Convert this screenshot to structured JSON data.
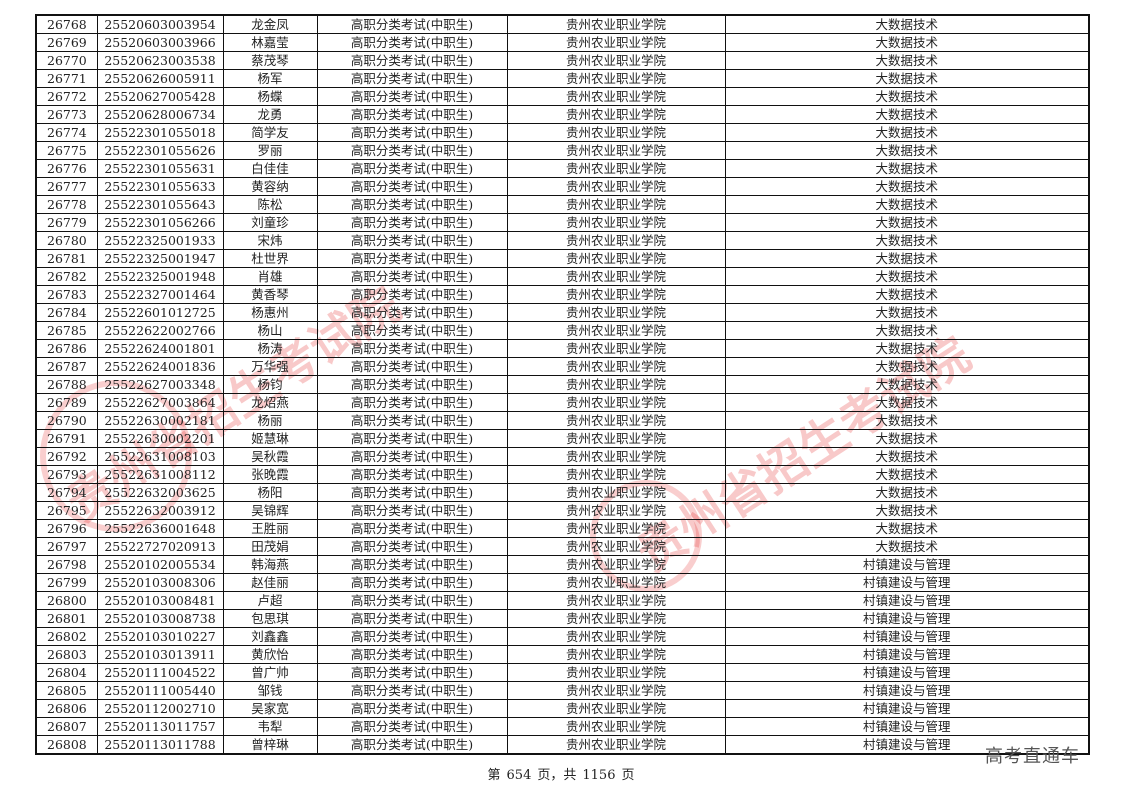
{
  "table": {
    "rows": [
      [
        "26768",
        "25520603003954",
        "龙金凤",
        "高职分类考试(中职生)",
        "贵州农业职业学院",
        "大数据技术"
      ],
      [
        "26769",
        "25520603003966",
        "林嘉莹",
        "高职分类考试(中职生)",
        "贵州农业职业学院",
        "大数据技术"
      ],
      [
        "26770",
        "25520623003538",
        "蔡茂琴",
        "高职分类考试(中职生)",
        "贵州农业职业学院",
        "大数据技术"
      ],
      [
        "26771",
        "25520626005911",
        "杨军",
        "高职分类考试(中职生)",
        "贵州农业职业学院",
        "大数据技术"
      ],
      [
        "26772",
        "25520627005428",
        "杨蝶",
        "高职分类考试(中职生)",
        "贵州农业职业学院",
        "大数据技术"
      ],
      [
        "26773",
        "25520628006734",
        "龙勇",
        "高职分类考试(中职生)",
        "贵州农业职业学院",
        "大数据技术"
      ],
      [
        "26774",
        "25522301055018",
        "简学友",
        "高职分类考试(中职生)",
        "贵州农业职业学院",
        "大数据技术"
      ],
      [
        "26775",
        "25522301055626",
        "罗丽",
        "高职分类考试(中职生)",
        "贵州农业职业学院",
        "大数据技术"
      ],
      [
        "26776",
        "25522301055631",
        "白佳佳",
        "高职分类考试(中职生)",
        "贵州农业职业学院",
        "大数据技术"
      ],
      [
        "26777",
        "25522301055633",
        "黄容纳",
        "高职分类考试(中职生)",
        "贵州农业职业学院",
        "大数据技术"
      ],
      [
        "26778",
        "25522301055643",
        "陈松",
        "高职分类考试(中职生)",
        "贵州农业职业学院",
        "大数据技术"
      ],
      [
        "26779",
        "25522301056266",
        "刘童珍",
        "高职分类考试(中职生)",
        "贵州农业职业学院",
        "大数据技术"
      ],
      [
        "26780",
        "25522325001933",
        "宋炜",
        "高职分类考试(中职生)",
        "贵州农业职业学院",
        "大数据技术"
      ],
      [
        "26781",
        "25522325001947",
        "杜世界",
        "高职分类考试(中职生)",
        "贵州农业职业学院",
        "大数据技术"
      ],
      [
        "26782",
        "25522325001948",
        "肖雄",
        "高职分类考试(中职生)",
        "贵州农业职业学院",
        "大数据技术"
      ],
      [
        "26783",
        "25522327001464",
        "黄香琴",
        "高职分类考试(中职生)",
        "贵州农业职业学院",
        "大数据技术"
      ],
      [
        "26784",
        "25522601012725",
        "杨惠州",
        "高职分类考试(中职生)",
        "贵州农业职业学院",
        "大数据技术"
      ],
      [
        "26785",
        "25522622002766",
        "杨山",
        "高职分类考试(中职生)",
        "贵州农业职业学院",
        "大数据技术"
      ],
      [
        "26786",
        "25522624001801",
        "杨涛",
        "高职分类考试(中职生)",
        "贵州农业职业学院",
        "大数据技术"
      ],
      [
        "26787",
        "25522624001836",
        "万华强",
        "高职分类考试(中职生)",
        "贵州农业职业学院",
        "大数据技术"
      ],
      [
        "26788",
        "25522627003348",
        "杨钧",
        "高职分类考试(中职生)",
        "贵州农业职业学院",
        "大数据技术"
      ],
      [
        "26789",
        "25522627003864",
        "龙炤燕",
        "高职分类考试(中职生)",
        "贵州农业职业学院",
        "大数据技术"
      ],
      [
        "26790",
        "25522630002181",
        "杨丽",
        "高职分类考试(中职生)",
        "贵州农业职业学院",
        "大数据技术"
      ],
      [
        "26791",
        "25522630002201",
        "姬慧琳",
        "高职分类考试(中职生)",
        "贵州农业职业学院",
        "大数据技术"
      ],
      [
        "26792",
        "25522631008103",
        "吴秋霞",
        "高职分类考试(中职生)",
        "贵州农业职业学院",
        "大数据技术"
      ],
      [
        "26793",
        "25522631008112",
        "张晚霞",
        "高职分类考试(中职生)",
        "贵州农业职业学院",
        "大数据技术"
      ],
      [
        "26794",
        "25522632003625",
        "杨阳",
        "高职分类考试(中职生)",
        "贵州农业职业学院",
        "大数据技术"
      ],
      [
        "26795",
        "25522632003912",
        "吴锦辉",
        "高职分类考试(中职生)",
        "贵州农业职业学院",
        "大数据技术"
      ],
      [
        "26796",
        "25522636001648",
        "王胜丽",
        "高职分类考试(中职生)",
        "贵州农业职业学院",
        "大数据技术"
      ],
      [
        "26797",
        "25522727020913",
        "田茂娟",
        "高职分类考试(中职生)",
        "贵州农业职业学院",
        "大数据技术"
      ],
      [
        "26798",
        "25520102005534",
        "韩海燕",
        "高职分类考试(中职生)",
        "贵州农业职业学院",
        "村镇建设与管理"
      ],
      [
        "26799",
        "25520103008306",
        "赵佳丽",
        "高职分类考试(中职生)",
        "贵州农业职业学院",
        "村镇建设与管理"
      ],
      [
        "26800",
        "25520103008481",
        "卢超",
        "高职分类考试(中职生)",
        "贵州农业职业学院",
        "村镇建设与管理"
      ],
      [
        "26801",
        "25520103008738",
        "包思琪",
        "高职分类考试(中职生)",
        "贵州农业职业学院",
        "村镇建设与管理"
      ],
      [
        "26802",
        "25520103010227",
        "刘鑫鑫",
        "高职分类考试(中职生)",
        "贵州农业职业学院",
        "村镇建设与管理"
      ],
      [
        "26803",
        "25520103013911",
        "黄欣怡",
        "高职分类考试(中职生)",
        "贵州农业职业学院",
        "村镇建设与管理"
      ],
      [
        "26804",
        "25520111004522",
        "曾广帅",
        "高职分类考试(中职生)",
        "贵州农业职业学院",
        "村镇建设与管理"
      ],
      [
        "26805",
        "25520111005440",
        "邹钱",
        "高职分类考试(中职生)",
        "贵州农业职业学院",
        "村镇建设与管理"
      ],
      [
        "26806",
        "25520112002710",
        "吴家宽",
        "高职分类考试(中职生)",
        "贵州农业职业学院",
        "村镇建设与管理"
      ],
      [
        "26807",
        "25520113011757",
        "韦犁",
        "高职分类考试(中职生)",
        "贵州农业职业学院",
        "村镇建设与管理"
      ],
      [
        "26808",
        "25520113011788",
        "曾梓琳",
        "高职分类考试(中职生)",
        "贵州农业职业学院",
        "村镇建设与管理"
      ]
    ]
  },
  "footer": {
    "prefix": "第",
    "page": "654",
    "mid": "页，共",
    "total": "1156",
    "suffix": "页"
  },
  "brand": "高考直通车",
  "watermark": {
    "text": "贵州省招生考试院",
    "color": "#e63c3c"
  }
}
